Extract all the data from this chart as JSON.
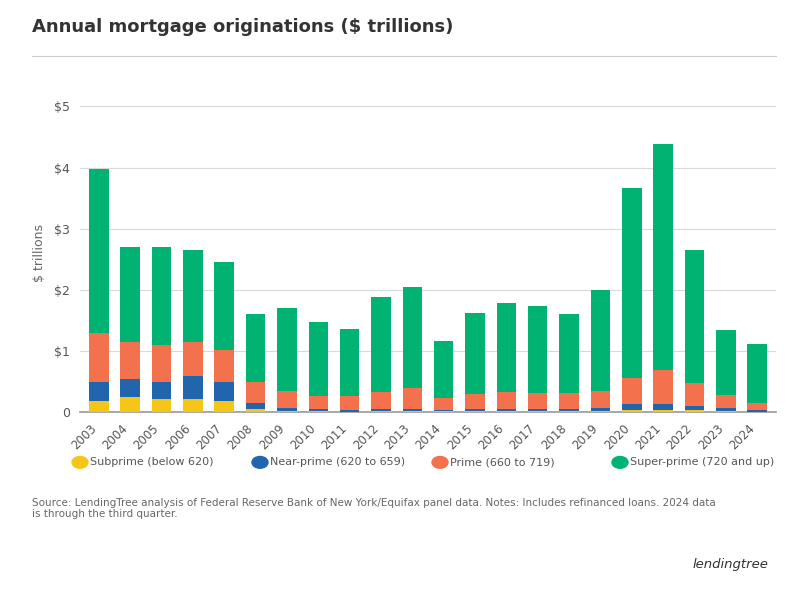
{
  "years": [
    2003,
    2004,
    2005,
    2006,
    2007,
    2008,
    2009,
    2010,
    2011,
    2012,
    2013,
    2014,
    2015,
    2016,
    2017,
    2018,
    2019,
    2020,
    2021,
    2022,
    2023,
    2024
  ],
  "subprime": [
    0.18,
    0.25,
    0.22,
    0.22,
    0.18,
    0.05,
    0.02,
    0.02,
    0.01,
    0.02,
    0.02,
    0.02,
    0.02,
    0.02,
    0.02,
    0.02,
    0.02,
    0.04,
    0.04,
    0.03,
    0.02,
    0.01
  ],
  "near_prime": [
    0.32,
    0.3,
    0.28,
    0.38,
    0.32,
    0.1,
    0.05,
    0.03,
    0.03,
    0.03,
    0.03,
    0.02,
    0.03,
    0.04,
    0.04,
    0.04,
    0.05,
    0.1,
    0.1,
    0.07,
    0.05,
    0.03
  ],
  "prime": [
    0.8,
    0.6,
    0.6,
    0.55,
    0.52,
    0.35,
    0.28,
    0.22,
    0.22,
    0.28,
    0.35,
    0.2,
    0.25,
    0.28,
    0.26,
    0.26,
    0.28,
    0.42,
    0.55,
    0.38,
    0.22,
    0.12
  ],
  "super_prime": [
    2.68,
    1.55,
    1.6,
    1.5,
    1.43,
    1.1,
    1.35,
    1.2,
    1.1,
    1.55,
    1.65,
    0.92,
    1.33,
    1.44,
    1.42,
    1.28,
    1.65,
    3.1,
    3.7,
    2.18,
    1.05,
    0.95
  ],
  "colors": {
    "subprime": "#f5c518",
    "near_prime": "#2166ac",
    "prime": "#f4714e",
    "super_prime": "#00b373"
  },
  "title": "Annual mortgage originations ($ trillions)",
  "ylabel": "$ trillions",
  "ylim": [
    0,
    5.2
  ],
  "yticks": [
    0,
    1,
    2,
    3,
    4,
    5
  ],
  "ytick_labels": [
    "0",
    "$1",
    "$2",
    "$3",
    "$4",
    "$5"
  ],
  "legend_labels": [
    "Subprime (below 620)",
    "Near-prime (620 to 659)",
    "Prime (660 to 719)",
    "Super-prime (720 and up)"
  ],
  "source_text": "Source: LendingTree analysis of Federal Reserve Bank of New York/Equifax panel data. Notes: Includes refinanced loans. 2024 data\nis through the third quarter.",
  "background_color": "#ffffff",
  "grid_color": "#d9d9d9",
  "title_line_color": "#cccccc"
}
